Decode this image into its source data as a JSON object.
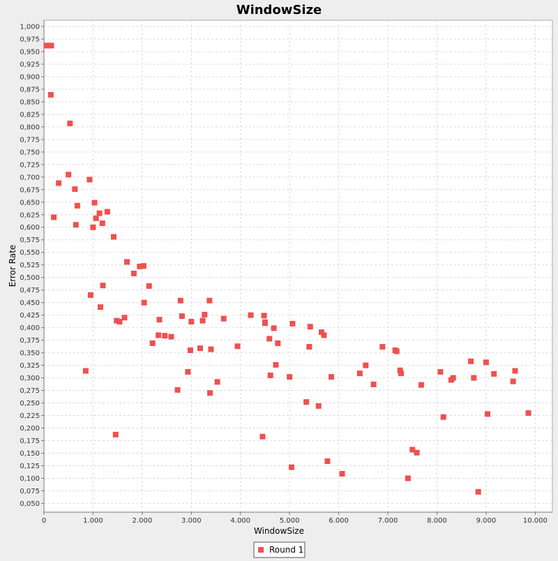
{
  "chart_data": {
    "type": "scatter",
    "title": "WindowSize",
    "xlabel": "WindowSize",
    "ylabel": "Error Rate",
    "xlim": [
      0,
      10350
    ],
    "ylim": [
      0.0325,
      1.0125
    ],
    "x_ticks": [
      0,
      1000,
      2000,
      3000,
      4000,
      5000,
      6000,
      7000,
      8000,
      9000,
      10000
    ],
    "x_tick_labels": [
      "0",
      "1.000",
      "2.000",
      "3.000",
      "4.000",
      "5.000",
      "6.000",
      "7.000",
      "8.000",
      "9.000",
      "10.000"
    ],
    "y_ticks": [
      0.05,
      0.075,
      0.1,
      0.125,
      0.15,
      0.175,
      0.2,
      0.225,
      0.25,
      0.275,
      0.3,
      0.325,
      0.35,
      0.375,
      0.4,
      0.425,
      0.45,
      0.475,
      0.5,
      0.525,
      0.55,
      0.575,
      0.6,
      0.625,
      0.65,
      0.675,
      0.7,
      0.725,
      0.75,
      0.775,
      0.8,
      0.825,
      0.85,
      0.875,
      0.9,
      0.925,
      0.95,
      0.975,
      1.0
    ],
    "y_tick_labels": [
      "0,050",
      "0,075",
      "0,100",
      "0,125",
      "0,150",
      "0,175",
      "0,200",
      "0,225",
      "0,250",
      "0,275",
      "0,300",
      "0,325",
      "0,350",
      "0,375",
      "0,400",
      "0,425",
      "0,450",
      "0,475",
      "0,500",
      "0,525",
      "0,550",
      "0,575",
      "0,600",
      "0,625",
      "0,650",
      "0,675",
      "0,700",
      "0,725",
      "0,750",
      "0,775",
      "0,800",
      "0,825",
      "0,850",
      "0,875",
      "0,900",
      "0,925",
      "0,950",
      "0,975",
      "1,000"
    ],
    "grid": true,
    "legend_position": "bottom-center",
    "colors": {
      "series": "#f05050",
      "plot_bg": "#ffffff",
      "grid": "#d9d9d9",
      "page_bg": "#eeeeee"
    },
    "series": [
      {
        "name": "Round 1",
        "marker": "square",
        "points": [
          [
            50,
            0.962
          ],
          [
            90,
            0.962
          ],
          [
            150,
            0.962
          ],
          [
            140,
            0.864
          ],
          [
            200,
            0.62
          ],
          [
            300,
            0.688
          ],
          [
            500,
            0.705
          ],
          [
            530,
            0.807
          ],
          [
            630,
            0.676
          ],
          [
            650,
            0.605
          ],
          [
            680,
            0.643
          ],
          [
            850,
            0.314
          ],
          [
            930,
            0.695
          ],
          [
            950,
            0.465
          ],
          [
            1000,
            0.6
          ],
          [
            1030,
            0.649
          ],
          [
            1060,
            0.618
          ],
          [
            1130,
            0.628
          ],
          [
            1150,
            0.441
          ],
          [
            1190,
            0.608
          ],
          [
            1200,
            0.484
          ],
          [
            1290,
            0.631
          ],
          [
            1420,
            0.581
          ],
          [
            1460,
            0.187
          ],
          [
            1480,
            0.414
          ],
          [
            1540,
            0.412
          ],
          [
            1640,
            0.42
          ],
          [
            1690,
            0.531
          ],
          [
            1830,
            0.508
          ],
          [
            1950,
            0.522
          ],
          [
            2030,
            0.523
          ],
          [
            2040,
            0.45
          ],
          [
            2140,
            0.483
          ],
          [
            2210,
            0.369
          ],
          [
            2330,
            0.385
          ],
          [
            2350,
            0.416
          ],
          [
            2460,
            0.384
          ],
          [
            2590,
            0.382
          ],
          [
            2720,
            0.276
          ],
          [
            2780,
            0.454
          ],
          [
            2810,
            0.423
          ],
          [
            2930,
            0.312
          ],
          [
            2980,
            0.355
          ],
          [
            3000,
            0.412
          ],
          [
            3180,
            0.359
          ],
          [
            3230,
            0.414
          ],
          [
            3270,
            0.426
          ],
          [
            3370,
            0.454
          ],
          [
            3380,
            0.27
          ],
          [
            3400,
            0.357
          ],
          [
            3530,
            0.292
          ],
          [
            3660,
            0.418
          ],
          [
            3940,
            0.363
          ],
          [
            4210,
            0.425
          ],
          [
            4450,
            0.183
          ],
          [
            4480,
            0.424
          ],
          [
            4500,
            0.411
          ],
          [
            4500,
            0.409
          ],
          [
            4590,
            0.378
          ],
          [
            4610,
            0.305
          ],
          [
            4680,
            0.399
          ],
          [
            4720,
            0.326
          ],
          [
            4760,
            0.369
          ],
          [
            5000,
            0.302
          ],
          [
            5040,
            0.122
          ],
          [
            5060,
            0.408
          ],
          [
            5340,
            0.252
          ],
          [
            5400,
            0.362
          ],
          [
            5420,
            0.402
          ],
          [
            5590,
            0.244
          ],
          [
            5650,
            0.391
          ],
          [
            5700,
            0.385
          ],
          [
            5770,
            0.134
          ],
          [
            5850,
            0.302
          ],
          [
            6070,
            0.109
          ],
          [
            6430,
            0.309
          ],
          [
            6550,
            0.325
          ],
          [
            6710,
            0.287
          ],
          [
            6890,
            0.362
          ],
          [
            7150,
            0.355
          ],
          [
            7180,
            0.353
          ],
          [
            7250,
            0.315
          ],
          [
            7270,
            0.309
          ],
          [
            7410,
            0.1
          ],
          [
            7500,
            0.157
          ],
          [
            7590,
            0.151
          ],
          [
            7680,
            0.286
          ],
          [
            8070,
            0.312
          ],
          [
            8130,
            0.222
          ],
          [
            8290,
            0.296
          ],
          [
            8330,
            0.3
          ],
          [
            8690,
            0.333
          ],
          [
            8750,
            0.3
          ],
          [
            8840,
            0.073
          ],
          [
            9000,
            0.331
          ],
          [
            9030,
            0.228
          ],
          [
            9160,
            0.308
          ],
          [
            9550,
            0.293
          ],
          [
            9590,
            0.314
          ],
          [
            9860,
            0.23
          ]
        ]
      }
    ]
  }
}
